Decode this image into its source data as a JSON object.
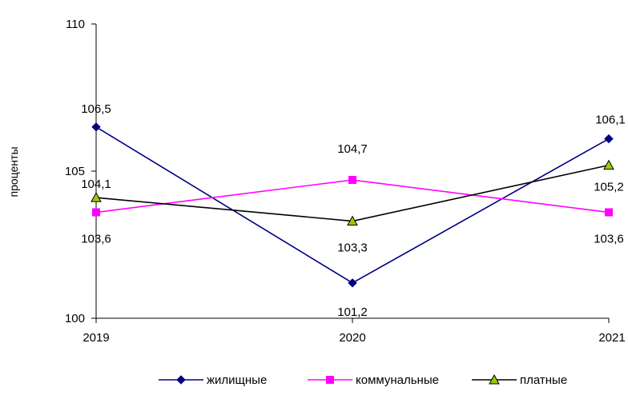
{
  "chart_data": {
    "type": "line",
    "title": "",
    "xlabel": "",
    "ylabel": "проценты",
    "categories": [
      "2019",
      "2020",
      "2021"
    ],
    "ylim": [
      100,
      110
    ],
    "yticks": [
      100,
      105,
      110
    ],
    "grid": false,
    "legend_position": "bottom-right",
    "series": [
      {
        "name": "жилищные",
        "values": [
          106.5,
          101.2,
          106.1
        ],
        "labels": [
          "106,5",
          "101,2",
          "106,1"
        ],
        "color": "#000080",
        "marker": "diamond"
      },
      {
        "name": "коммунальные",
        "values": [
          103.6,
          104.7,
          103.6
        ],
        "labels": [
          "103,6",
          "104,7",
          "103,6"
        ],
        "color": "#ff00ff",
        "marker": "square"
      },
      {
        "name": "платные",
        "values": [
          104.1,
          103.3,
          105.2
        ],
        "labels": [
          "104,1",
          "103,3",
          "105,2"
        ],
        "color": "#000000",
        "marker": "triangle",
        "marker_fill": "#99cc00"
      }
    ]
  }
}
